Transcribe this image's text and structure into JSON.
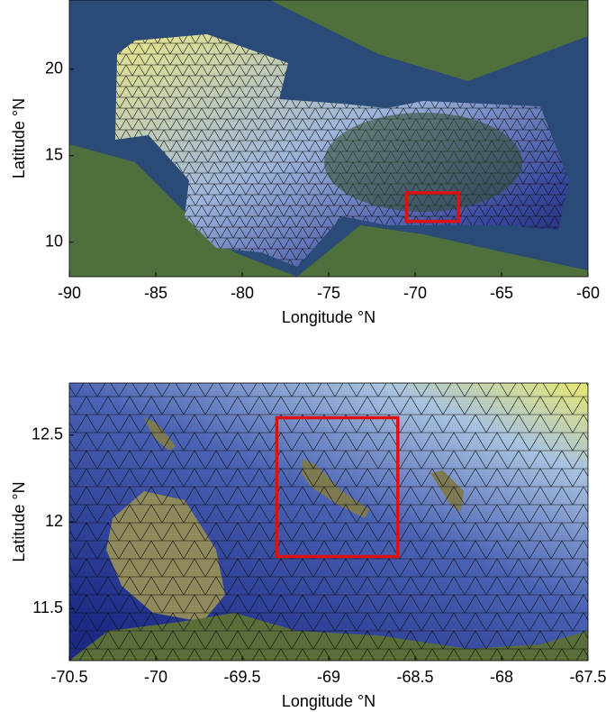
{
  "chart_data": [
    {
      "type": "map",
      "xlabel": "Longitude °N",
      "ylabel": "Latitude °N",
      "xlim": [
        -90,
        -60
      ],
      "ylim": [
        8,
        24
      ],
      "xticks": [
        -90,
        -85,
        -80,
        -75,
        -70,
        -65,
        -60
      ],
      "yticks": [
        10,
        15,
        20
      ],
      "highlight_box": {
        "x": [
          -70.5,
          -67.5
        ],
        "y": [
          11.2,
          12.85
        ],
        "color": "#e01010"
      }
    },
    {
      "type": "map",
      "xlabel": "Longitude °N",
      "ylabel": "Latitude °N",
      "xlim": [
        -70.5,
        -67.5
      ],
      "ylim": [
        11.2,
        12.8
      ],
      "xticks": [
        -70.5,
        -70,
        -69.5,
        -69,
        -68.5,
        -68,
        -67.5
      ],
      "yticks": [
        11.5,
        12,
        12.5
      ],
      "highlight_box": {
        "x": [
          -69.3,
          -68.6
        ],
        "y": [
          11.8,
          12.6
        ],
        "color": "#e01010"
      }
    }
  ]
}
